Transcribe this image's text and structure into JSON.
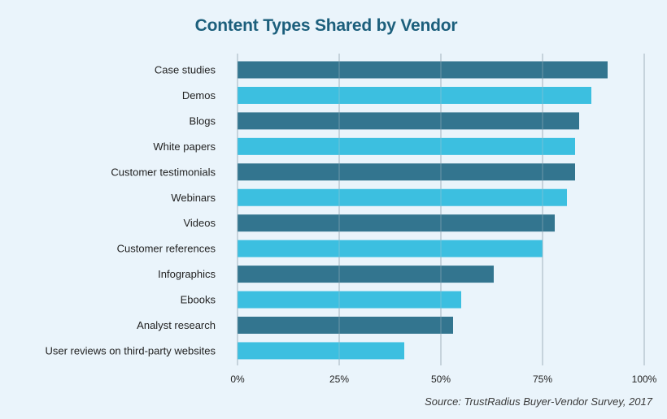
{
  "chart_data": {
    "type": "bar",
    "orientation": "horizontal",
    "title": "Content Types Shared by Vendor",
    "source": "Source: TrustRadius Buyer-Vendor Survey, 2017",
    "categories": [
      "Case studies",
      "Demos",
      "Blogs",
      "White papers",
      "Customer testimonials",
      "Webinars",
      "Videos",
      "Customer references",
      "Infographics",
      "Ebooks",
      "Analyst research",
      "User reviews on third-party websites"
    ],
    "values": [
      91,
      87,
      84,
      83,
      83,
      81,
      78,
      75,
      63,
      55,
      53,
      41
    ],
    "xlim": [
      0,
      100
    ],
    "x_ticks": [
      {
        "value": 0,
        "label": "0%"
      },
      {
        "value": 25,
        "label": "25%"
      },
      {
        "value": 50,
        "label": "50%"
      },
      {
        "value": 75,
        "label": "75%"
      },
      {
        "value": 100,
        "label": "100%"
      }
    ],
    "grid": true,
    "colors": {
      "dark": "#33758f",
      "light": "#3cbfe0",
      "grid": "#b2c2cc"
    }
  }
}
